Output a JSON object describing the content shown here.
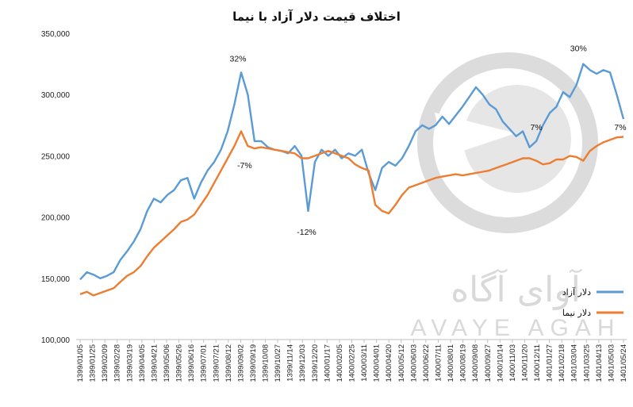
{
  "chart_data": {
    "type": "line",
    "title": "اختلاف قیمت دلار آزاد با نیما",
    "ylim": [
      100000,
      350000
    ],
    "y_ticks": [
      100000,
      150000,
      200000,
      250000,
      300000,
      350000
    ],
    "y_tick_labels": [
      "100,000",
      "150,000",
      "200,000",
      "250,000",
      "300,000",
      "350,000"
    ],
    "x_tick_labels": [
      "1399/01/05",
      "1399/01/25",
      "1399/02/09",
      "1399/02/28",
      "1399/03/19",
      "1399/04/05",
      "1399/04/21",
      "1399/05/06",
      "1399/05/26",
      "1399/06/16",
      "1399/07/01",
      "1399/07/21",
      "1399/08/12",
      "1399/09/02",
      "1399/09/19",
      "1399/10/08",
      "1399/10/27",
      "1399/11/14",
      "1399/12/03",
      "1399/12/20",
      "1400/01/17",
      "1400/02/05",
      "1400/02/25",
      "1400/03/11",
      "1400/04/01",
      "1400/04/20",
      "1400/05/12",
      "1400/06/03",
      "1400/06/22",
      "1400/07/11",
      "1400/08/01",
      "1400/08/19",
      "1400/09/08",
      "1400/09/27",
      "1400/10/14",
      "1400/11/03",
      "1400/11/20",
      "1400/12/11",
      "1401/01/27",
      "1401/02/18",
      "1401/03/04",
      "1401/03/25",
      "1401/04/13",
      "1401/05/03",
      "1401/05/24"
    ],
    "series": [
      {
        "name": "دلار آزاد",
        "color": "#5b9bd5",
        "values": [
          149000,
          155000,
          153000,
          150000,
          152000,
          155000,
          165000,
          172000,
          180000,
          190000,
          205000,
          215000,
          212000,
          218000,
          222000,
          230000,
          232000,
          215000,
          228000,
          238000,
          245000,
          255000,
          270000,
          292000,
          318000,
          300000,
          262000,
          262000,
          257000,
          255000,
          254000,
          252000,
          258000,
          250000,
          205000,
          245000,
          255000,
          250000,
          255000,
          248000,
          252000,
          250000,
          255000,
          236000,
          222000,
          240000,
          245000,
          242000,
          248000,
          258000,
          270000,
          275000,
          272000,
          275000,
          282000,
          276000,
          283000,
          290000,
          298000,
          306000,
          300000,
          292000,
          288000,
          278000,
          272000,
          266000,
          270000,
          257000,
          262000,
          275000,
          285000,
          290000,
          302000,
          298000,
          308000,
          325000,
          320000,
          317000,
          320000,
          318000,
          300000,
          280000
        ]
      },
      {
        "name": "دلار نیما",
        "color": "#ed7d31",
        "values": [
          137000,
          139000,
          136000,
          138000,
          140000,
          142000,
          147000,
          152000,
          155000,
          160000,
          168000,
          175000,
          180000,
          185000,
          190000,
          196000,
          198000,
          202000,
          210000,
          218000,
          228000,
          238000,
          248000,
          258000,
          270000,
          258000,
          256000,
          257000,
          256000,
          255000,
          254000,
          253000,
          252000,
          248000,
          248000,
          250000,
          252000,
          254000,
          252000,
          250000,
          248000,
          243000,
          240000,
          238000,
          210000,
          205000,
          203000,
          210000,
          218000,
          224000,
          226000,
          228000,
          230000,
          232000,
          233000,
          234000,
          235000,
          234000,
          235000,
          236000,
          237000,
          238000,
          240000,
          242000,
          244000,
          246000,
          248000,
          248000,
          246000,
          243000,
          244000,
          247000,
          247000,
          250000,
          249000,
          246000,
          254000,
          258000,
          261000,
          263000,
          265000,
          265500
        ]
      }
    ],
    "annotations": [
      {
        "text": "32%"
      },
      {
        "text": "-7%"
      },
      {
        "text": "-12%"
      },
      {
        "text": "7%"
      },
      {
        "text": "30%"
      },
      {
        "text": "7%"
      }
    ],
    "legend_position": "bottom-right",
    "grid": false
  },
  "watermark": {
    "brand_fa": "آوای آگاه",
    "brand_en": "AVAYE AGAH"
  }
}
